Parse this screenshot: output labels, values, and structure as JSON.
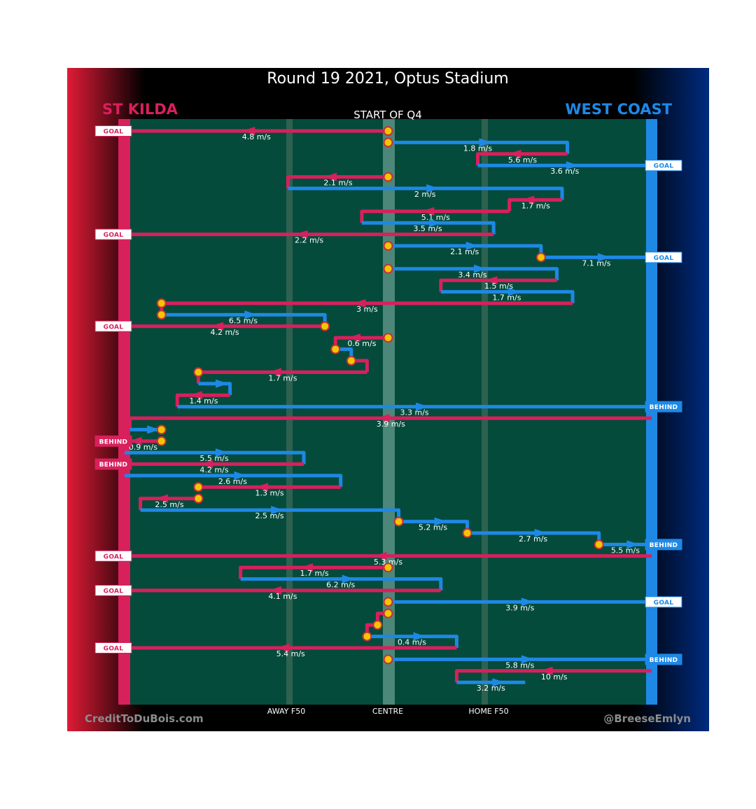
{
  "title": "Round 19 2021, Optus Stadium",
  "subtitle": "START OF Q4",
  "teams": {
    "left": {
      "name": "ST KILDA",
      "color": "#d8205c"
    },
    "right": {
      "name": "WEST COAST",
      "color": "#1e88e5"
    }
  },
  "axis_labels": {
    "away_f50": "AWAY F50",
    "centre": "CENTRE",
    "home_f50": "HOME F50"
  },
  "credits": {
    "left": "CreditToDuBois.com",
    "right": "@BreeseEmlyn"
  },
  "colors": {
    "pitch": "#044b3b",
    "stk": "#d8205c",
    "wce": "#1e88e5",
    "marker_fill": "#f5c400",
    "marker_stroke": "#c4303a",
    "background": "#000000"
  },
  "chart_data": {
    "type": "possession-chain-chart",
    "x_scale": "0 = St Kilda goal line, 50 = centre, 100 = West Coast goal line",
    "xlim": [
      0,
      100
    ],
    "chains": [
      {
        "team": "stk",
        "speed": "4.8 m/s",
        "from": 50,
        "to": 0,
        "start_marker": true,
        "outcome": "GOAL",
        "drop": false
      },
      {
        "team": "wce",
        "speed": "1.8 m/s",
        "from": 50,
        "to": 84,
        "start_marker": true,
        "drop": true
      },
      {
        "team": "stk",
        "speed": "5.6 m/s",
        "from": 84,
        "to": 67,
        "drop": true
      },
      {
        "team": "wce",
        "speed": "3.6 m/s",
        "from": 67,
        "to": 100,
        "outcome": "GOAL",
        "drop": false
      },
      {
        "team": "stk",
        "speed": "2.1 m/s",
        "from": 50,
        "to": 31,
        "start_marker": true,
        "drop": true
      },
      {
        "team": "wce",
        "speed": "2 m/s",
        "from": 31,
        "to": 83,
        "drop": true
      },
      {
        "team": "stk",
        "speed": "1.7 m/s",
        "from": 83,
        "to": 73,
        "drop": true
      },
      {
        "team": "stk",
        "speed": "5.1 m/s",
        "from": 73,
        "to": 45,
        "drop": true
      },
      {
        "team": "wce",
        "speed": "3.5 m/s",
        "from": 45,
        "to": 70,
        "drop": true
      },
      {
        "team": "stk",
        "speed": "2.2 m/s",
        "from": 70,
        "to": 0,
        "outcome": "GOAL",
        "drop": false
      },
      {
        "team": "wce",
        "speed": "2.1 m/s",
        "from": 50,
        "to": 79,
        "start_marker": true,
        "drop": true
      },
      {
        "team": "wce",
        "speed": "7.1 m/s",
        "from": 79,
        "to": 100,
        "start_marker": true,
        "outcome": "GOAL",
        "drop": false
      },
      {
        "team": "wce",
        "speed": "3.4 m/s",
        "from": 50,
        "to": 82,
        "start_marker": true,
        "drop": true
      },
      {
        "team": "stk",
        "speed": "1.5 m/s",
        "from": 82,
        "to": 60,
        "drop": true
      },
      {
        "team": "wce",
        "speed": "1.7 m/s",
        "from": 60,
        "to": 85,
        "drop": true
      },
      {
        "team": "stk",
        "speed": "3 m/s",
        "from": 85,
        "to": 7,
        "end_marker": true,
        "drop": true
      },
      {
        "team": "wce",
        "speed": "6.5 m/s",
        "from": 7,
        "to": 38,
        "start_marker": true,
        "drop": true
      },
      {
        "team": "stk",
        "speed": "4.2 m/s",
        "from": 38,
        "to": 0,
        "start_marker": true,
        "outcome": "GOAL",
        "drop": false
      },
      {
        "team": "stk",
        "speed": "0.6 m/s",
        "from": 50,
        "to": 40,
        "start_marker": true,
        "drop": true
      },
      {
        "team": "wce",
        "speed": "",
        "from": 40,
        "to": 43,
        "start_marker": true,
        "drop": true
      },
      {
        "team": "stk",
        "speed": "",
        "from": 43,
        "to": 46,
        "start_marker": true,
        "drop": true
      },
      {
        "team": "stk",
        "speed": "1.7 m/s",
        "from": 46,
        "to": 14,
        "end_marker": true,
        "drop": true
      },
      {
        "team": "wce",
        "speed": "",
        "from": 14,
        "to": 20,
        "drop": true
      },
      {
        "team": "stk",
        "speed": "1.4 m/s",
        "from": 20,
        "to": 10,
        "drop": true
      },
      {
        "team": "wce",
        "speed": "3.3 m/s",
        "from": 10,
        "to": 100,
        "outcome": "BEHIND",
        "drop": true
      },
      {
        "team": "stk",
        "speed": "3.9 m/s",
        "from": 100,
        "to": 1,
        "drop": true
      },
      {
        "team": "wce",
        "speed": "",
        "from": 1,
        "to": 7,
        "end_marker": true,
        "drop": false
      },
      {
        "team": "stk",
        "speed": "0.9 m/s",
        "from": 7,
        "to": 0,
        "start_marker": true,
        "outcome": "BEHIND",
        "drop": false
      },
      {
        "team": "wce",
        "speed": "5.5 m/s",
        "from": 0,
        "to": 34,
        "drop": true
      },
      {
        "team": "stk",
        "speed": "4.2 m/s",
        "from": 34,
        "to": 0,
        "outcome": "BEHIND",
        "drop": false
      },
      {
        "team": "wce",
        "speed": "2.6 m/s",
        "from": 0,
        "to": 41,
        "drop": true
      },
      {
        "team": "stk",
        "speed": "1.3 m/s",
        "from": 41,
        "to": 14,
        "end_marker": true,
        "drop": false
      },
      {
        "team": "stk",
        "speed": "2.5 m/s",
        "from": 14,
        "to": 3,
        "start_marker": true,
        "drop": true
      },
      {
        "team": "wce",
        "speed": "2.5 m/s",
        "from": 3,
        "to": 52,
        "drop": true
      },
      {
        "team": "wce",
        "speed": "5.2 m/s",
        "from": 52,
        "to": 65,
        "start_marker": true,
        "drop": true
      },
      {
        "team": "wce",
        "speed": "2.7 m/s",
        "from": 65,
        "to": 90,
        "start_marker": true,
        "drop": true
      },
      {
        "team": "wce",
        "speed": "5.5 m/s",
        "from": 90,
        "to": 100,
        "start_marker": true,
        "outcome": "BEHIND",
        "drop": false
      },
      {
        "team": "stk",
        "speed": "5.3 m/s",
        "from": 100,
        "to": 0,
        "outcome": "GOAL",
        "drop": false
      },
      {
        "team": "stk",
        "speed": "1.7 m/s",
        "from": 50,
        "to": 22,
        "start_marker": true,
        "drop": true
      },
      {
        "team": "wce",
        "speed": "6.2 m/s",
        "from": 22,
        "to": 60,
        "drop": true
      },
      {
        "team": "stk",
        "speed": "4.1 m/s",
        "from": 60,
        "to": 0,
        "outcome": "GOAL",
        "drop": false
      },
      {
        "team": "wce",
        "speed": "3.9 m/s",
        "from": 50,
        "to": 100,
        "start_marker": true,
        "outcome": "GOAL",
        "drop": false
      },
      {
        "team": "stk",
        "speed": "",
        "from": 50,
        "to": 48,
        "start_marker": true,
        "drop": true
      },
      {
        "team": "stk",
        "speed": "",
        "from": 48,
        "to": 46,
        "start_marker": true,
        "drop": true
      },
      {
        "team": "wce",
        "speed": "0.4 m/s",
        "from": 46,
        "to": 63,
        "start_marker": true,
        "drop": true
      },
      {
        "team": "stk",
        "speed": "5.4 m/s",
        "from": 63,
        "to": 0,
        "outcome": "GOAL",
        "drop": false
      },
      {
        "team": "wce",
        "speed": "5.8 m/s",
        "from": 50,
        "to": 100,
        "start_marker": true,
        "outcome": "BEHIND",
        "drop": true
      },
      {
        "team": "stk",
        "speed": "10 m/s",
        "from": 100,
        "to": 63,
        "drop": true
      },
      {
        "team": "wce",
        "speed": "3.2 m/s",
        "from": 63,
        "to": 76,
        "drop": false
      }
    ]
  }
}
